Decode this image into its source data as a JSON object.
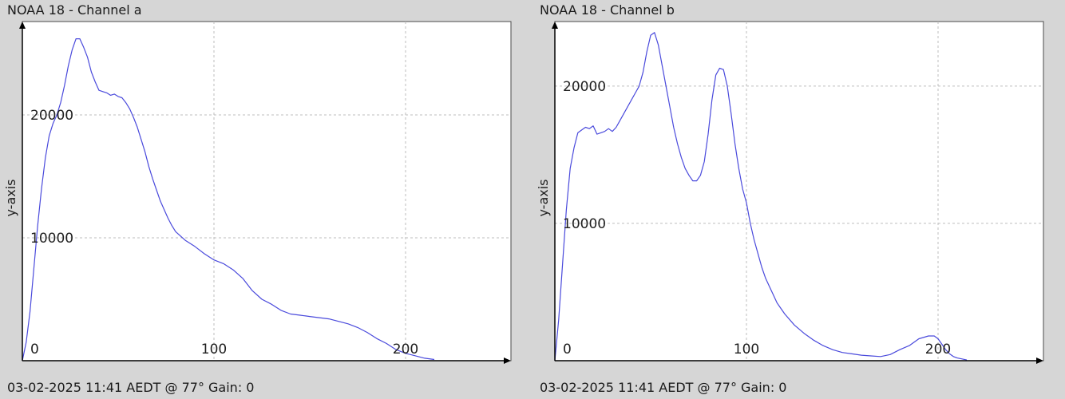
{
  "chart_data": [
    {
      "type": "line",
      "title": "NOAA 18 - Channel a",
      "footer": "03-02-2025 11:41 AEDT @ 77° Gain: 0",
      "ylabel": "y-axis",
      "xlabel": "",
      "xlim": [
        0,
        255
      ],
      "ylim": [
        0,
        27600
      ],
      "xticks": [
        0,
        100,
        200
      ],
      "yticks": [
        10000,
        20000
      ],
      "grid": true,
      "legend": "none",
      "line_color": "#4a4adc",
      "x": [
        0,
        2,
        4,
        6,
        8,
        10,
        12,
        14,
        16,
        18,
        20,
        22,
        24,
        26,
        28,
        30,
        32,
        34,
        36,
        38,
        40,
        42,
        44,
        46,
        48,
        50,
        52,
        54,
        56,
        58,
        60,
        62,
        64,
        66,
        68,
        70,
        72,
        74,
        76,
        78,
        80,
        85,
        90,
        95,
        100,
        105,
        110,
        115,
        120,
        125,
        130,
        135,
        140,
        145,
        150,
        155,
        160,
        165,
        170,
        175,
        180,
        185,
        190,
        195,
        200,
        205,
        210,
        215
      ],
      "y": [
        0,
        1500,
        4000,
        7500,
        11000,
        14000,
        16500,
        18300,
        19300,
        20000,
        21000,
        22400,
        24000,
        25300,
        26200,
        26200,
        25500,
        24700,
        23500,
        22700,
        22000,
        21900,
        21800,
        21600,
        21700,
        21500,
        21400,
        21000,
        20500,
        19800,
        19000,
        18000,
        17000,
        15800,
        14800,
        13900,
        13000,
        12300,
        11600,
        11000,
        10500,
        9800,
        9300,
        8700,
        8200,
        7900,
        7400,
        6700,
        5700,
        5000,
        4600,
        4100,
        3800,
        3700,
        3600,
        3500,
        3400,
        3200,
        3000,
        2700,
        2300,
        1800,
        1400,
        900,
        600,
        400,
        200,
        100
      ]
    },
    {
      "type": "line",
      "title": "NOAA 18 - Channel b",
      "footer": "03-02-2025 11:41 AEDT @ 77° Gain: 0",
      "ylabel": "y-axis",
      "xlabel": "",
      "xlim": [
        0,
        255
      ],
      "ylim": [
        0,
        24700
      ],
      "xticks": [
        0,
        100,
        200
      ],
      "yticks": [
        10000,
        20000
      ],
      "grid": true,
      "legend": "none",
      "line_color": "#4a4adc",
      "x": [
        0,
        2,
        4,
        6,
        8,
        10,
        12,
        14,
        16,
        18,
        20,
        22,
        24,
        26,
        28,
        30,
        32,
        34,
        36,
        38,
        40,
        42,
        44,
        46,
        48,
        50,
        52,
        54,
        56,
        58,
        60,
        62,
        64,
        66,
        68,
        70,
        72,
        74,
        76,
        78,
        80,
        82,
        84,
        86,
        88,
        90,
        92,
        94,
        96,
        98,
        100,
        102,
        104,
        106,
        108,
        110,
        112,
        114,
        116,
        118,
        120,
        125,
        130,
        135,
        140,
        145,
        150,
        155,
        160,
        165,
        170,
        175,
        180,
        185,
        190,
        195,
        198,
        200,
        202,
        204,
        206,
        208,
        210,
        215
      ],
      "y": [
        0,
        3000,
        7000,
        11000,
        14000,
        15500,
        16600,
        16800,
        17000,
        16900,
        17100,
        16500,
        16600,
        16700,
        16900,
        16700,
        17000,
        17500,
        18000,
        18500,
        19000,
        19500,
        20000,
        21000,
        22500,
        23700,
        23900,
        23000,
        21500,
        20000,
        18500,
        17000,
        15800,
        14800,
        14000,
        13500,
        13100,
        13100,
        13500,
        14500,
        16500,
        19000,
        20800,
        21300,
        21200,
        20000,
        18000,
        15800,
        14000,
        12500,
        11500,
        10000,
        8800,
        7800,
        6800,
        6000,
        5400,
        4800,
        4200,
        3800,
        3400,
        2600,
        2000,
        1500,
        1100,
        800,
        600,
        500,
        400,
        350,
        300,
        450,
        800,
        1100,
        1600,
        1800,
        1800,
        1600,
        1200,
        800,
        500,
        300,
        200,
        50
      ]
    }
  ]
}
